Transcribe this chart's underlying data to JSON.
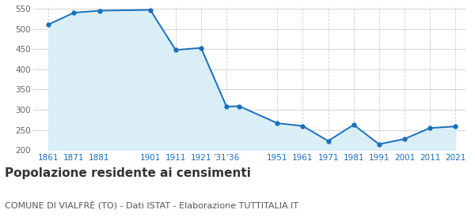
{
  "years_numeric": [
    1861,
    1871,
    1881,
    1901,
    1911,
    1921,
    1931,
    1936,
    1951,
    1961,
    1971,
    1981,
    1991,
    2001,
    2011,
    2021
  ],
  "years_labels": [
    "1861",
    "1871",
    "1881",
    "",
    "1901",
    "1911",
    "1921",
    "’31’36",
    "",
    "1951",
    "1961",
    "1971",
    "1981",
    "1991",
    "2001",
    "2011",
    "2021"
  ],
  "xtick_positions": [
    1861,
    1871,
    1881,
    1901,
    1911,
    1921,
    1931,
    1951,
    1961,
    1971,
    1981,
    1991,
    2001,
    2011,
    2021
  ],
  "xtick_labels": [
    "1861",
    "1871",
    "1881",
    "1901",
    "1911",
    "1921",
    "’31’36",
    "1951",
    "1961",
    "1971",
    "1981",
    "1991",
    "2001",
    "2011",
    "2021"
  ],
  "values": [
    511,
    540,
    545,
    547,
    448,
    453,
    308,
    309,
    267,
    260,
    223,
    263,
    215,
    228,
    255,
    259
  ],
  "line_color": "#1a6fba",
  "fill_color": "#daeef8",
  "marker": "o",
  "marker_size": 3.5,
  "ylim": [
    200,
    555
  ],
  "yticks": [
    200,
    250,
    300,
    350,
    400,
    450,
    500,
    550
  ],
  "title": "Popolazione residente ai censimenti",
  "subtitle": "COMUNE DI VIALFRÈ (TO) - Dati ISTAT - Elaborazione TUTTITALIA.IT",
  "title_fontsize": 11,
  "subtitle_fontsize": 8,
  "bg_color": "#ffffff",
  "grid_color": "#cccccc"
}
